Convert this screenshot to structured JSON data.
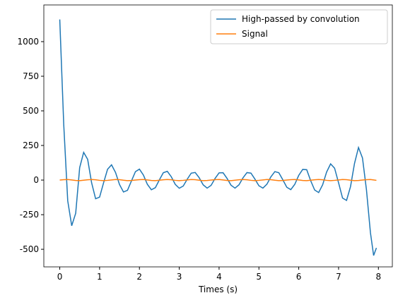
{
  "chart_data": {
    "type": "line",
    "xlabel": "Times (s)",
    "x": [
      0,
      0.1,
      0.2,
      0.3,
      0.4,
      0.5,
      0.6,
      0.7,
      0.8,
      0.9,
      1.0,
      1.1,
      1.2,
      1.3,
      1.4,
      1.5,
      1.6,
      1.7,
      1.8,
      1.9,
      2.0,
      2.1,
      2.2,
      2.3,
      2.4,
      2.5,
      2.6,
      2.7,
      2.8,
      2.9,
      3.0,
      3.1,
      3.2,
      3.3,
      3.4,
      3.5,
      3.6,
      3.7,
      3.8,
      3.9,
      4.0,
      4.1,
      4.2,
      4.3,
      4.4,
      4.5,
      4.6,
      4.7,
      4.8,
      4.9,
      5.0,
      5.1,
      5.2,
      5.3,
      5.4,
      5.5,
      5.6,
      5.7,
      5.8,
      5.9,
      6.0,
      6.1,
      6.2,
      6.3,
      6.4,
      6.5,
      6.6,
      6.7,
      6.8,
      6.9,
      7.0,
      7.1,
      7.2,
      7.3,
      7.4,
      7.5,
      7.6,
      7.7,
      7.8,
      7.88,
      7.95
    ],
    "series": [
      {
        "name": "High-passed by convolution",
        "color": "#1f77b4",
        "values": [
          1160,
          400,
          -150,
          -330,
          -240,
          90,
          200,
          150,
          -20,
          -135,
          -123,
          -20,
          78,
          110,
          55,
          -32,
          -86,
          -74,
          -6,
          61,
          79,
          36,
          -31,
          -70,
          -55,
          1,
          53,
          63,
          24,
          -31,
          -59,
          -43,
          6,
          50,
          55,
          17,
          -34,
          -58,
          -38,
          12,
          52,
          53,
          12,
          -37,
          -58,
          -34,
          16,
          54,
          50,
          7,
          -41,
          -58,
          -30,
          23,
          61,
          53,
          2,
          -52,
          -69,
          -31,
          34,
          77,
          75,
          -5,
          -72,
          -90,
          -34,
          58,
          117,
          86,
          -20,
          -130,
          -147,
          -47,
          120,
          235,
          160,
          -70,
          -380,
          -545,
          -490
        ]
      },
      {
        "name": "Signal",
        "color": "#ff7f0e",
        "values": [
          0,
          3,
          4,
          1,
          -3,
          -4,
          -1,
          2,
          4,
          2,
          -2,
          -4,
          -2,
          1,
          4,
          3,
          -1,
          -4,
          -3,
          0,
          3,
          4,
          1,
          -3,
          -4,
          -1,
          2,
          4,
          2,
          -2,
          -4,
          -2,
          1,
          4,
          3,
          -1,
          -4,
          -3,
          0,
          3,
          4,
          1,
          -3,
          -4,
          -1,
          2,
          4,
          2,
          -2,
          -4,
          -2,
          1,
          4,
          3,
          -1,
          -4,
          -3,
          0,
          3,
          4,
          1,
          -3,
          -4,
          -1,
          2,
          4,
          2,
          -2,
          -4,
          -2,
          1,
          4,
          3,
          -1,
          -4,
          -3,
          0,
          3,
          4,
          1,
          -2
        ]
      }
    ],
    "xlim": [
      -0.4,
      8.35
    ],
    "ylim": [
      -627,
      1265
    ],
    "xticks": [
      0,
      1,
      2,
      3,
      4,
      5,
      6,
      7,
      8
    ],
    "yticks": [
      -500,
      -250,
      0,
      250,
      500,
      750,
      1000
    ],
    "legend": "upper right",
    "grid": false
  }
}
